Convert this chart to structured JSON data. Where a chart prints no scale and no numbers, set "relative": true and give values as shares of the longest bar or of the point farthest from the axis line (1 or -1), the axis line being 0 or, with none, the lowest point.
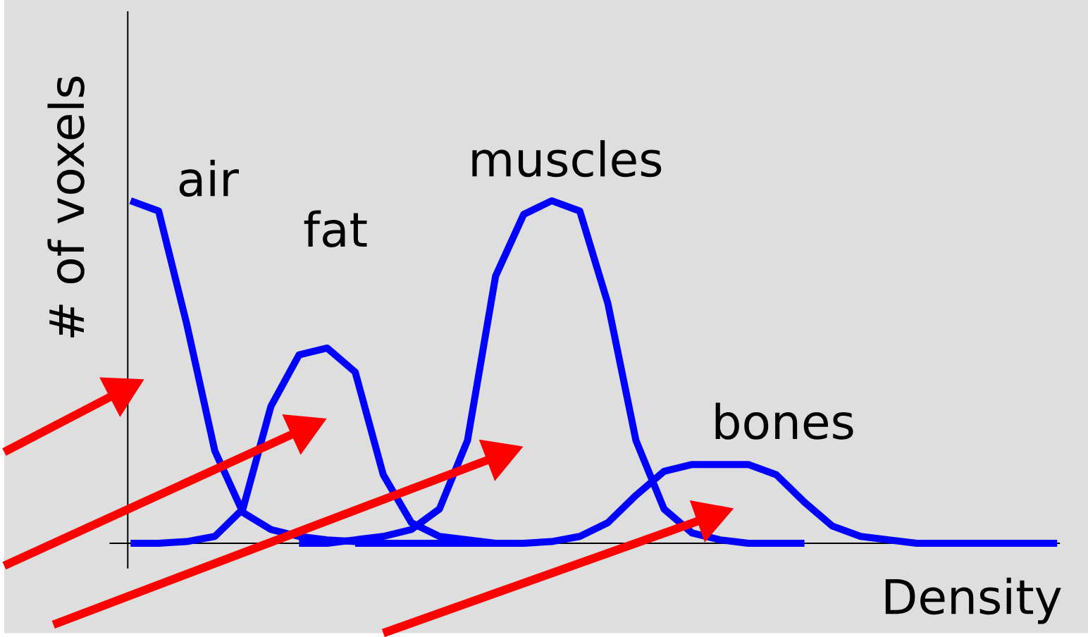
{
  "chart_data": {
    "type": "line",
    "relative": true,
    "xlabel": "Density",
    "ylabel": "# of voxels",
    "categories": [
      null,
      null,
      null,
      null,
      null,
      null,
      null,
      null,
      null,
      null,
      null,
      null,
      null,
      null,
      null,
      null,
      null,
      null,
      null,
      null,
      null,
      null,
      null,
      null,
      null,
      null,
      null,
      null,
      null,
      null,
      null,
      null,
      null,
      null
    ],
    "series": [
      {
        "name": "air",
        "color": "#0000ff",
        "values": [
          1.0,
          0.97,
          0.64,
          0.27,
          0.09,
          0.04,
          0.02,
          0.01,
          0.005,
          0.0,
          0.0,
          0.0,
          0.0,
          0.0,
          null,
          null,
          null,
          null,
          null,
          null,
          null,
          null,
          null,
          null,
          null,
          null,
          null,
          null,
          null,
          null,
          null,
          null,
          null,
          null
        ]
      },
      {
        "name": "fat",
        "color": "#0000ff",
        "values": [
          0.0,
          0.0,
          0.005,
          0.02,
          0.1,
          0.4,
          0.55,
          0.57,
          0.5,
          0.2,
          0.06,
          0.02,
          0.01,
          0.0,
          null,
          null,
          null,
          null,
          null,
          null,
          null,
          null,
          null,
          null,
          null,
          null,
          null,
          null,
          null,
          null,
          null,
          null,
          null,
          null
        ]
      },
      {
        "name": "muscles",
        "color": "#0000ff",
        "values": [
          null,
          null,
          null,
          null,
          null,
          null,
          0.0,
          0.0,
          0.01,
          0.02,
          0.04,
          0.1,
          0.3,
          0.78,
          0.96,
          1.0,
          0.97,
          0.7,
          0.3,
          0.1,
          0.03,
          0.01,
          0.0,
          0.0,
          0.0,
          null,
          null,
          null,
          null,
          null,
          null,
          null,
          null,
          null
        ]
      },
      {
        "name": "bones",
        "color": "#0000ff",
        "values": [
          null,
          null,
          null,
          null,
          null,
          null,
          null,
          null,
          0.0,
          0.0,
          0.0,
          0.0,
          0.0,
          0.0,
          0.0,
          0.005,
          0.02,
          0.06,
          0.14,
          0.21,
          0.23,
          0.23,
          0.23,
          0.2,
          0.12,
          0.05,
          0.02,
          0.01,
          0.0,
          0.0,
          0.0,
          0.0,
          0.0,
          0.0
        ]
      }
    ]
  }
}
